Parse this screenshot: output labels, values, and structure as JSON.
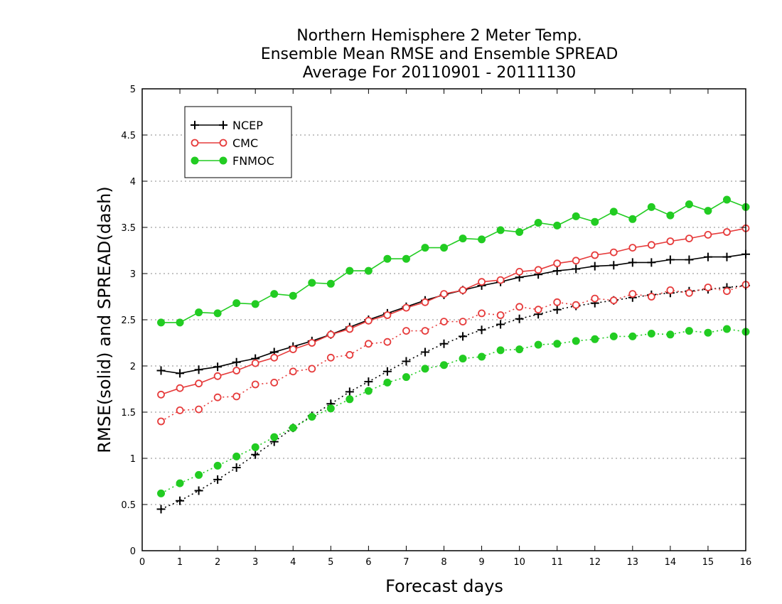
{
  "chart_data": {
    "type": "line",
    "title_lines": [
      "Northern Hemisphere 2 Meter Temp.",
      "Ensemble Mean RMSE and Ensemble SPREAD",
      "Average For 20110901 - 20111130"
    ],
    "xlabel": "Forecast days",
    "ylabel": "RMSE(solid)  and  SPREAD(dash)",
    "xlim": [
      0,
      16
    ],
    "ylim": [
      0,
      5
    ],
    "x_ticks": [
      "0",
      "1",
      "2",
      "3",
      "4",
      "5",
      "6",
      "7",
      "8",
      "9",
      "10",
      "11",
      "12",
      "13",
      "14",
      "15",
      "16"
    ],
    "y_ticks": [
      "0",
      "0.5",
      "1",
      "1.5",
      "2",
      "2.5",
      "3",
      "3.5",
      "4",
      "4.5",
      "5"
    ],
    "grid": "horizontal dotted",
    "legend_position": "top-left",
    "x": [
      0.5,
      1.0,
      1.5,
      2.0,
      2.5,
      3.0,
      3.5,
      4.0,
      4.5,
      5.0,
      5.5,
      6.0,
      6.5,
      7.0,
      7.5,
      8.0,
      8.5,
      9.0,
      9.5,
      10.0,
      10.5,
      11.0,
      11.5,
      12.0,
      12.5,
      13.0,
      13.5,
      14.0,
      14.5,
      15.0,
      15.5,
      16.0
    ],
    "series": [
      {
        "name": "NCEP",
        "color": "#000000",
        "marker": "plus",
        "rmse": [
          1.95,
          1.92,
          1.96,
          1.99,
          2.04,
          2.08,
          2.15,
          2.21,
          2.27,
          2.34,
          2.42,
          2.5,
          2.57,
          2.64,
          2.71,
          2.77,
          2.82,
          2.87,
          2.91,
          2.96,
          2.99,
          3.03,
          3.05,
          3.08,
          3.09,
          3.12,
          3.12,
          3.15,
          3.15,
          3.18,
          3.18,
          3.21
        ],
        "spread": [
          0.45,
          0.54,
          0.65,
          0.77,
          0.9,
          1.04,
          1.18,
          1.33,
          1.46,
          1.59,
          1.72,
          1.83,
          1.94,
          2.05,
          2.15,
          2.24,
          2.32,
          2.39,
          2.45,
          2.51,
          2.56,
          2.61,
          2.65,
          2.68,
          2.71,
          2.74,
          2.77,
          2.79,
          2.81,
          2.83,
          2.85,
          2.87
        ]
      },
      {
        "name": "CMC",
        "color": "#e63b3b",
        "marker": "open-circle",
        "rmse": [
          1.69,
          1.76,
          1.81,
          1.89,
          1.95,
          2.03,
          2.09,
          2.18,
          2.25,
          2.34,
          2.4,
          2.49,
          2.55,
          2.63,
          2.69,
          2.78,
          2.82,
          2.91,
          2.93,
          3.02,
          3.04,
          3.11,
          3.14,
          3.2,
          3.23,
          3.28,
          3.31,
          3.35,
          3.38,
          3.42,
          3.45,
          3.49
        ],
        "spread": [
          1.4,
          1.52,
          1.53,
          1.66,
          1.67,
          1.8,
          1.82,
          1.94,
          1.97,
          2.09,
          2.12,
          2.24,
          2.26,
          2.38,
          2.38,
          2.48,
          2.48,
          2.57,
          2.55,
          2.64,
          2.61,
          2.69,
          2.66,
          2.73,
          2.71,
          2.78,
          2.75,
          2.82,
          2.79,
          2.85,
          2.81,
          2.88
        ]
      },
      {
        "name": "FNMOC",
        "color": "#22cc22",
        "marker": "filled-circle",
        "rmse": [
          2.47,
          2.47,
          2.58,
          2.57,
          2.68,
          2.67,
          2.78,
          2.76,
          2.9,
          2.89,
          3.03,
          3.03,
          3.16,
          3.16,
          3.28,
          3.28,
          3.38,
          3.37,
          3.47,
          3.45,
          3.55,
          3.52,
          3.62,
          3.56,
          3.67,
          3.59,
          3.72,
          3.63,
          3.75,
          3.68,
          3.8,
          3.72
        ],
        "spread": [
          0.62,
          0.73,
          0.82,
          0.92,
          1.02,
          1.12,
          1.23,
          1.33,
          1.45,
          1.54,
          1.64,
          1.73,
          1.82,
          1.88,
          1.97,
          2.01,
          2.08,
          2.1,
          2.17,
          2.18,
          2.23,
          2.24,
          2.27,
          2.29,
          2.32,
          2.32,
          2.35,
          2.34,
          2.38,
          2.36,
          2.4,
          2.37
        ]
      }
    ]
  }
}
